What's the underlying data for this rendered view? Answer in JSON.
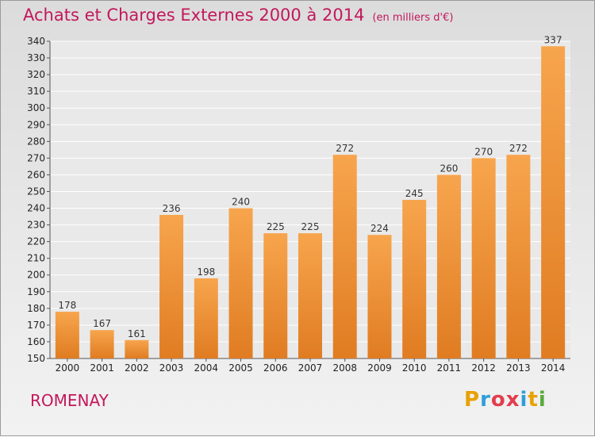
{
  "title": "Achats et Charges Externes 2000 à 2014",
  "subtitle": "(en milliers d'€)",
  "place": "ROMENAY",
  "logo": {
    "letters": [
      "P",
      "r",
      "o",
      "x",
      "i",
      "t",
      "i"
    ],
    "colors": [
      "#e8a200",
      "#2f9ed8",
      "#e23d4e",
      "#e23d4e",
      "#2f9ed8",
      "#e8a200",
      "#5aab3a"
    ]
  },
  "colors": {
    "bar_top": "#f7a54d",
    "bar_bottom": "#e07c22",
    "title": "#c2185b"
  },
  "chart_data": {
    "type": "bar",
    "categories": [
      "2000",
      "2001",
      "2002",
      "2003",
      "2004",
      "2005",
      "2006",
      "2007",
      "2008",
      "2009",
      "2010",
      "2011",
      "2012",
      "2013",
      "2014"
    ],
    "values": [
      178,
      167,
      161,
      236,
      198,
      240,
      225,
      225,
      272,
      224,
      245,
      260,
      270,
      272,
      337
    ],
    "title": "Achats et Charges Externes 2000 à 2014",
    "ylim": [
      150,
      340
    ],
    "yticks": [
      150,
      160,
      170,
      180,
      190,
      200,
      210,
      220,
      230,
      240,
      250,
      260,
      270,
      280,
      290,
      300,
      310,
      320,
      330,
      340
    ],
    "grid": true,
    "legend": "none"
  }
}
